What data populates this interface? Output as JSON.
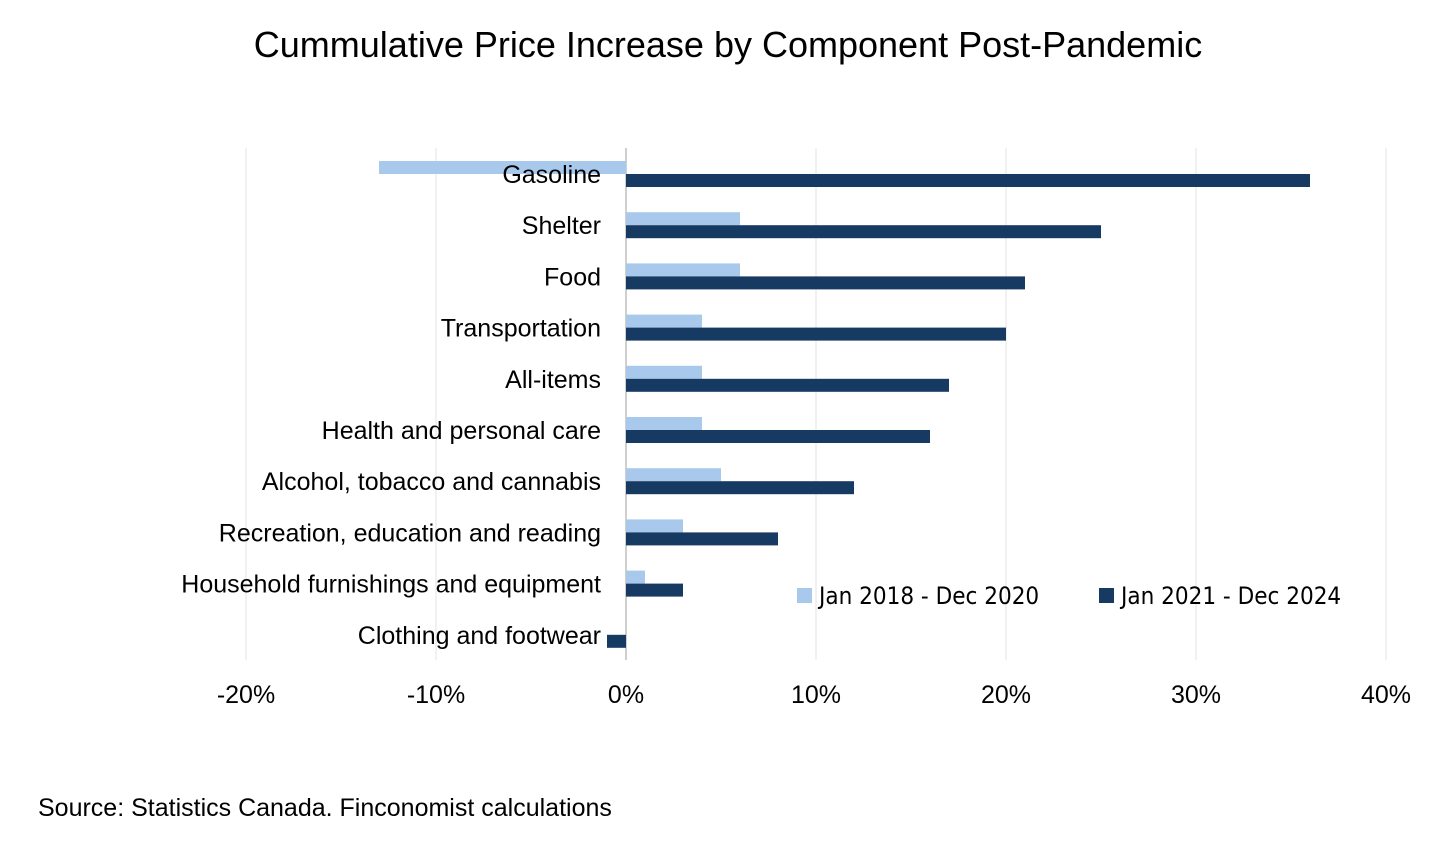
{
  "chart_data": {
    "type": "bar",
    "orientation": "horizontal",
    "title": "Cummulative Price Increase by Component Post-Pandemic",
    "xlabel": "",
    "ylabel": "",
    "xlim": [
      -20,
      40
    ],
    "x_ticks": [
      -20,
      -10,
      0,
      10,
      20,
      30,
      40
    ],
    "x_tick_labels": [
      "-20%",
      "-10%",
      "0%",
      "10%",
      "20%",
      "30%",
      "40%"
    ],
    "grid": true,
    "legend_position": "bottom-right",
    "categories": [
      "Gasoline",
      "Shelter",
      "Food",
      "Transportation",
      "All-items",
      "Health and personal care",
      "Alcohol, tobacco and cannabis",
      "Recreation, education and reading",
      "Household furnishings and equipment",
      "Clothing and footwear"
    ],
    "series": [
      {
        "name": "Jan 2018 - Dec 2020",
        "color": "#a9c9ec",
        "values": [
          -13,
          6,
          6,
          4,
          4,
          4,
          5,
          3,
          1,
          0
        ]
      },
      {
        "name": "Jan 2021 - Dec 2024",
        "color": "#173a62",
        "values": [
          36,
          25,
          21,
          20,
          17,
          16,
          12,
          8,
          3,
          -1
        ]
      }
    ]
  },
  "source": "Source:  Statistics Canada. Finconomist calculations"
}
